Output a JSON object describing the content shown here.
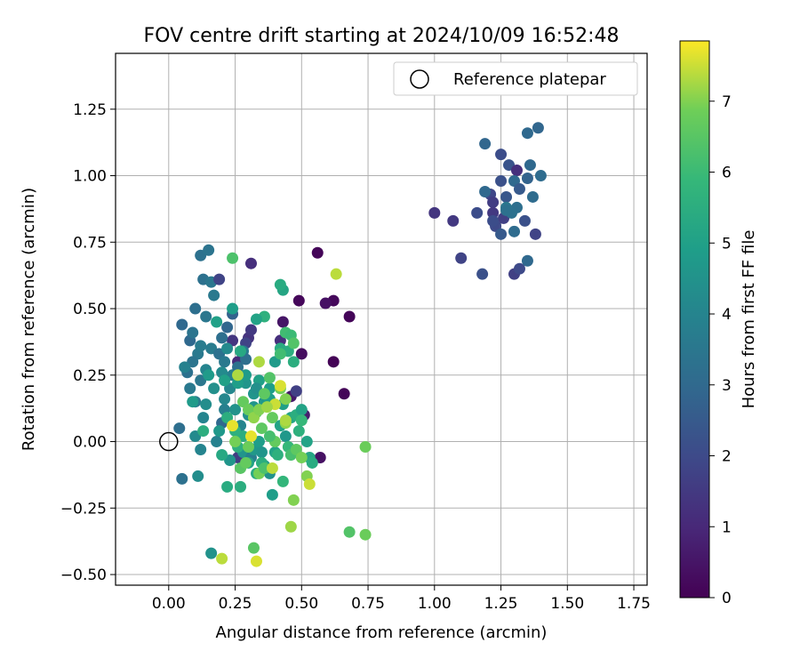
{
  "chart_data": {
    "type": "scatter",
    "title": "FOV centre drift starting at 2024/10/09 16:52:48",
    "xlabel": "Angular distance from reference (arcmin)",
    "ylabel": "Rotation from reference (arcmin)",
    "xlim": [
      -0.2,
      1.8
    ],
    "ylim": [
      -0.54,
      1.46
    ],
    "xticks": [
      0.0,
      0.25,
      0.5,
      0.75,
      1.0,
      1.25,
      1.5,
      1.75
    ],
    "xtick_labels": [
      "0.00",
      "0.25",
      "0.50",
      "0.75",
      "1.00",
      "1.25",
      "1.50",
      "1.75"
    ],
    "yticks": [
      -0.5,
      -0.25,
      0.0,
      0.25,
      0.5,
      0.75,
      1.0,
      1.25
    ],
    "ytick_labels": [
      "−0.50",
      "−0.25",
      "0.00",
      "0.25",
      "0.50",
      "0.75",
      "1.00",
      "1.25"
    ],
    "grid": true,
    "colormap": "viridis",
    "colorbar": {
      "label": "Hours from first FF file",
      "range": [
        0,
        7.85
      ],
      "ticks": [
        0,
        1,
        2,
        3,
        4,
        5,
        6,
        7
      ],
      "tick_labels": [
        "0",
        "1",
        "2",
        "3",
        "4",
        "5",
        "6",
        "7"
      ]
    },
    "legend": {
      "placement": "top-right",
      "entries": [
        {
          "label": "Reference platepar",
          "marker": "open-circle"
        }
      ]
    },
    "reference_point": {
      "x": 0.0,
      "y": 0.0
    },
    "points": [
      [
        0.56,
        0.71,
        0.1
      ],
      [
        0.62,
        0.53,
        0.2
      ],
      [
        0.68,
        0.47,
        0.1
      ],
      [
        0.49,
        0.53,
        0.15
      ],
      [
        0.62,
        0.3,
        0.05
      ],
      [
        0.66,
        0.18,
        0.1
      ],
      [
        0.5,
        0.33,
        0.3
      ],
      [
        0.43,
        0.45,
        0.5
      ],
      [
        0.46,
        0.17,
        0.6
      ],
      [
        0.51,
        0.1,
        0.7
      ],
      [
        0.57,
        -0.06,
        0.4
      ],
      [
        0.59,
        0.52,
        0.4
      ],
      [
        0.31,
        0.67,
        1.2
      ],
      [
        0.3,
        0.39,
        1.3
      ],
      [
        0.31,
        0.42,
        1.5
      ],
      [
        0.42,
        0.38,
        1.2
      ],
      [
        0.26,
        0.3,
        1.1
      ],
      [
        0.24,
        0.38,
        1.4
      ],
      [
        0.29,
        0.37,
        1.8
      ],
      [
        0.26,
        -0.06,
        1.6
      ],
      [
        0.48,
        0.19,
        1.7
      ],
      [
        1.0,
        0.86,
        1.4
      ],
      [
        1.07,
        0.83,
        1.5
      ],
      [
        1.1,
        0.69,
        1.8
      ],
      [
        1.18,
        0.63,
        2.2
      ],
      [
        1.21,
        0.93,
        1.9
      ],
      [
        1.22,
        0.9,
        1.6
      ],
      [
        1.22,
        0.86,
        1.5
      ],
      [
        1.23,
        0.81,
        2.0
      ],
      [
        1.25,
        0.78,
        2.5
      ],
      [
        1.25,
        0.98,
        2.2
      ],
      [
        1.26,
        0.84,
        1.7
      ],
      [
        1.27,
        0.92,
        2.4
      ],
      [
        1.28,
        1.04,
        2.3
      ],
      [
        1.19,
        0.94,
        3.0
      ],
      [
        1.19,
        1.12,
        2.9
      ],
      [
        1.25,
        1.08,
        2.1
      ],
      [
        1.3,
        0.63,
        1.7
      ],
      [
        1.31,
        1.02,
        1.2
      ],
      [
        1.32,
        0.65,
        2.0
      ],
      [
        1.34,
        0.83,
        2.2
      ],
      [
        1.35,
        0.68,
        3.0
      ],
      [
        1.35,
        0.99,
        2.8
      ],
      [
        1.36,
        1.04,
        3.0
      ],
      [
        1.37,
        0.92,
        3.1
      ],
      [
        1.38,
        0.78,
        1.8
      ],
      [
        1.39,
        1.18,
        2.9
      ],
      [
        1.35,
        1.16,
        3.0
      ],
      [
        1.4,
        1.0,
        3.1
      ],
      [
        1.31,
        0.88,
        3.2
      ],
      [
        1.29,
        0.86,
        3.3
      ],
      [
        1.27,
        0.88,
        3.5
      ],
      [
        1.3,
        0.98,
        3.0
      ],
      [
        1.16,
        0.86,
        2.1
      ],
      [
        1.27,
        0.87,
        3.3
      ],
      [
        1.3,
        0.79,
        3.1
      ],
      [
        1.32,
        0.95,
        2.5
      ],
      [
        1.22,
        0.83,
        2.1
      ],
      [
        0.05,
        0.44,
        3.0
      ],
      [
        0.08,
        0.38,
        3.0
      ],
      [
        0.1,
        0.5,
        3.2
      ],
      [
        0.13,
        0.61,
        3.3
      ],
      [
        0.16,
        0.6,
        3.5
      ],
      [
        0.12,
        0.7,
        3.3
      ],
      [
        0.15,
        0.72,
        3.4
      ],
      [
        0.19,
        0.61,
        1.8
      ],
      [
        0.24,
        0.48,
        2.8
      ],
      [
        0.17,
        0.55,
        3.6
      ],
      [
        0.14,
        0.47,
        3.5
      ],
      [
        0.11,
        0.33,
        3.6
      ],
      [
        0.12,
        0.36,
        3.7
      ],
      [
        0.09,
        0.3,
        3.4
      ],
      [
        0.07,
        0.26,
        3.3
      ],
      [
        0.06,
        0.28,
        3.9
      ],
      [
        0.08,
        0.2,
        3.6
      ],
      [
        0.1,
        0.15,
        3.7
      ],
      [
        0.12,
        0.23,
        3.5
      ],
      [
        0.14,
        0.27,
        4.0
      ],
      [
        0.16,
        0.35,
        3.7
      ],
      [
        0.19,
        0.33,
        3.3
      ],
      [
        0.2,
        0.39,
        3.2
      ],
      [
        0.21,
        0.3,
        3.6
      ],
      [
        0.22,
        0.35,
        4.2
      ],
      [
        0.24,
        0.25,
        3.8
      ],
      [
        0.26,
        0.28,
        3.3
      ],
      [
        0.28,
        0.34,
        3.7
      ],
      [
        0.29,
        0.31,
        3.2
      ],
      [
        0.13,
        0.09,
        4.0
      ],
      [
        0.1,
        0.02,
        4.2
      ],
      [
        0.12,
        -0.03,
        4.0
      ],
      [
        0.04,
        0.05,
        3.2
      ],
      [
        0.05,
        -0.14,
        3.3
      ],
      [
        0.11,
        -0.13,
        4.3
      ],
      [
        0.16,
        -0.42,
        4.5
      ],
      [
        0.18,
        0.0,
        3.9
      ],
      [
        0.2,
        0.07,
        3.0
      ],
      [
        0.21,
        0.12,
        3.8
      ],
      [
        0.23,
        0.2,
        4.1
      ],
      [
        0.25,
        0.12,
        4.5
      ],
      [
        0.27,
        0.06,
        4.0
      ],
      [
        0.29,
        0.22,
        4.6
      ],
      [
        0.3,
        0.1,
        4.4
      ],
      [
        0.32,
        0.18,
        4.6
      ],
      [
        0.34,
        0.23,
        5.0
      ],
      [
        0.36,
        0.15,
        4.7
      ],
      [
        0.38,
        0.2,
        4.9
      ],
      [
        0.4,
        0.3,
        4.8
      ],
      [
        0.15,
        0.25,
        4.8
      ],
      [
        0.17,
        0.2,
        4.4
      ],
      [
        0.18,
        0.45,
        5.0
      ],
      [
        0.14,
        0.14,
        4.3
      ],
      [
        0.09,
        0.41,
        3.4
      ],
      [
        0.2,
        0.26,
        4.2
      ],
      [
        0.22,
        0.43,
        2.9
      ],
      [
        0.24,
        0.5,
        4.9
      ],
      [
        0.26,
        0.22,
        4.9
      ],
      [
        0.27,
        0.34,
        5.3
      ],
      [
        0.29,
        0.25,
        4.8
      ],
      [
        0.19,
        0.04,
        4.7
      ],
      [
        0.21,
        0.16,
        4.1
      ],
      [
        0.23,
        -0.07,
        4.6
      ],
      [
        0.28,
        -0.04,
        4.6
      ],
      [
        0.3,
        -0.02,
        4.4
      ],
      [
        0.31,
        -0.06,
        3.8
      ],
      [
        0.32,
        -0.03,
        4.7
      ],
      [
        0.34,
        0.0,
        4.9
      ],
      [
        0.35,
        -0.04,
        4.6
      ],
      [
        0.36,
        -0.09,
        4.7
      ],
      [
        0.38,
        -0.12,
        4.5
      ],
      [
        0.39,
        -0.2,
        4.9
      ],
      [
        0.4,
        -0.04,
        5.1
      ],
      [
        0.42,
        0.06,
        5.1
      ],
      [
        0.43,
        0.14,
        5.0
      ],
      [
        0.44,
        0.02,
        4.7
      ],
      [
        0.46,
        0.09,
        5.2
      ],
      [
        0.48,
        0.1,
        5.5
      ],
      [
        0.5,
        0.12,
        5.1
      ],
      [
        0.52,
        0.0,
        5.1
      ],
      [
        0.53,
        -0.06,
        5.2
      ],
      [
        0.54,
        -0.08,
        5.4
      ],
      [
        0.47,
        0.3,
        5.5
      ],
      [
        0.45,
        0.34,
        5.5
      ],
      [
        0.42,
        0.35,
        5.4
      ],
      [
        0.38,
        0.16,
        4.9
      ],
      [
        0.36,
        0.47,
        5.6
      ],
      [
        0.33,
        0.46,
        5.1
      ],
      [
        0.33,
        0.2,
        4.4
      ],
      [
        0.32,
        0.13,
        4.6
      ],
      [
        0.3,
        -0.08,
        5.1
      ],
      [
        0.28,
        0.02,
        5.5
      ],
      [
        0.26,
        -0.02,
        5.6
      ],
      [
        0.25,
        0.04,
        5.6
      ],
      [
        0.22,
        0.09,
        5.5
      ],
      [
        0.2,
        -0.05,
        5.3
      ],
      [
        0.22,
        -0.17,
        5.4
      ],
      [
        0.27,
        -0.17,
        5.5
      ],
      [
        0.33,
        -0.12,
        5.4
      ],
      [
        0.35,
        -0.08,
        5.5
      ],
      [
        0.41,
        -0.05,
        5.6
      ],
      [
        0.43,
        -0.15,
        5.8
      ],
      [
        0.45,
        -0.02,
        5.9
      ],
      [
        0.49,
        0.04,
        5.6
      ],
      [
        0.5,
        0.08,
        5.9
      ],
      [
        0.43,
        0.57,
        5.2
      ],
      [
        0.42,
        0.59,
        5.4
      ],
      [
        0.13,
        0.04,
        5.5
      ],
      [
        0.09,
        0.15,
        4.8
      ],
      [
        0.21,
        0.23,
        5.0
      ],
      [
        0.32,
        -0.4,
        6.5
      ],
      [
        0.24,
        0.69,
        6.3
      ],
      [
        0.42,
        0.33,
        6.1
      ],
      [
        0.44,
        0.41,
        6.1
      ],
      [
        0.46,
        0.4,
        6.0
      ],
      [
        0.47,
        0.37,
        6.4
      ],
      [
        0.33,
        0.11,
        6.5
      ],
      [
        0.35,
        0.05,
        6.6
      ],
      [
        0.39,
        0.09,
        6.7
      ],
      [
        0.4,
        0.0,
        6.7
      ],
      [
        0.42,
        0.2,
        6.9
      ],
      [
        0.44,
        0.16,
        7.0
      ],
      [
        0.46,
        -0.05,
        6.2
      ],
      [
        0.48,
        -0.03,
        6.6
      ],
      [
        0.5,
        -0.06,
        6.9
      ],
      [
        0.52,
        -0.13,
        7.0
      ],
      [
        0.44,
        0.07,
        7.1
      ],
      [
        0.27,
        -0.1,
        6.5
      ],
      [
        0.29,
        -0.08,
        6.7
      ],
      [
        0.34,
        -0.12,
        6.9
      ],
      [
        0.36,
        -0.1,
        6.3
      ],
      [
        0.38,
        0.02,
        6.2
      ],
      [
        0.28,
        0.15,
        6.7
      ],
      [
        0.3,
        0.12,
        6.8
      ],
      [
        0.32,
        0.09,
        7.1
      ],
      [
        0.34,
        0.12,
        7.0
      ],
      [
        0.36,
        0.18,
        6.6
      ],
      [
        0.38,
        0.24,
        6.4
      ],
      [
        0.47,
        -0.22,
        7.0
      ],
      [
        0.46,
        -0.32,
        7.2
      ],
      [
        0.68,
        -0.34,
        6.4
      ],
      [
        0.74,
        -0.35,
        6.8
      ],
      [
        0.74,
        -0.02,
        6.8
      ],
      [
        0.63,
        0.63,
        7.4
      ],
      [
        0.53,
        -0.16,
        7.5
      ],
      [
        0.33,
        -0.45,
        7.6
      ],
      [
        0.2,
        -0.44,
        7.4
      ],
      [
        0.42,
        0.21,
        7.6
      ],
      [
        0.44,
        0.08,
        7.3
      ],
      [
        0.39,
        -0.1,
        7.4
      ],
      [
        0.24,
        0.06,
        7.7
      ],
      [
        0.31,
        0.02,
        7.7
      ],
      [
        0.4,
        0.14,
        7.5
      ],
      [
        0.34,
        0.3,
        7.3
      ],
      [
        0.26,
        0.25,
        7.3
      ],
      [
        0.3,
        -0.02,
        6.8
      ],
      [
        0.37,
        0.13,
        7.2
      ],
      [
        0.25,
        0.0,
        6.9
      ]
    ]
  }
}
